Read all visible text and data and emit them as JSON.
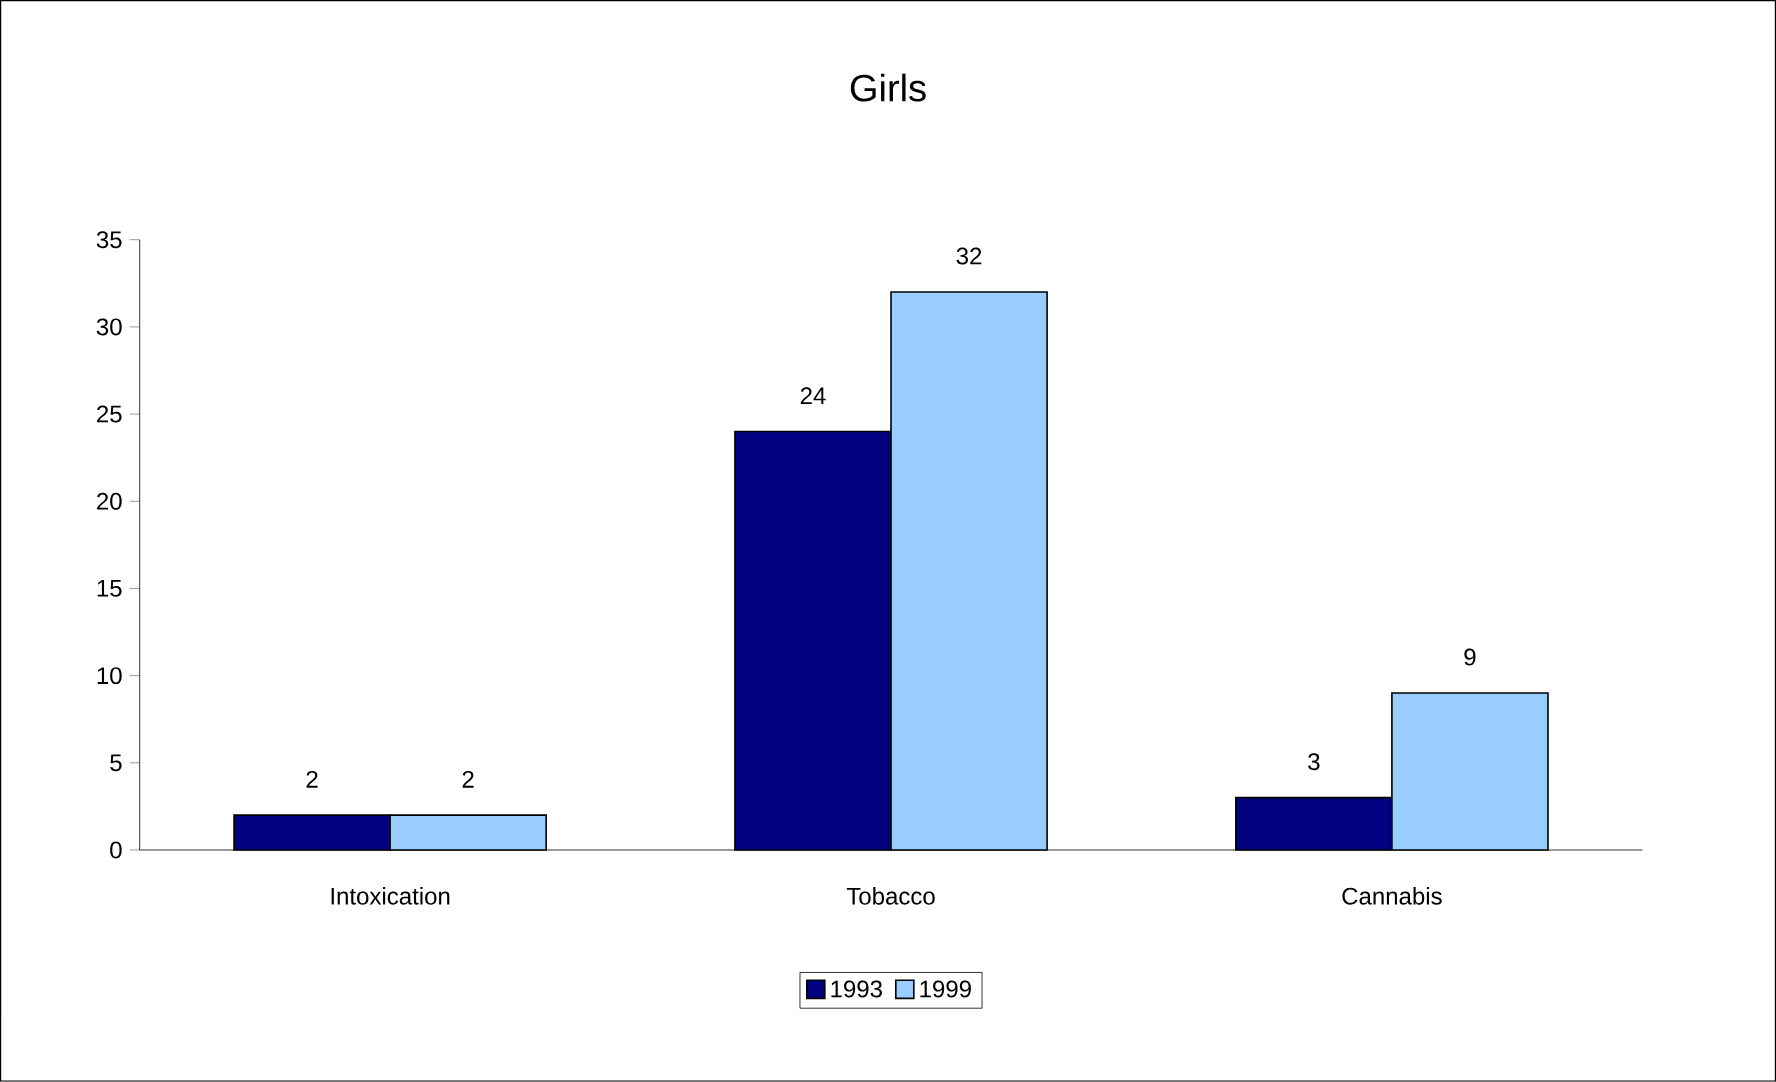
{
  "chart_data": {
    "type": "bar",
    "title": "Girls",
    "categories": [
      "Intoxication",
      "Tobacco",
      "Cannabis"
    ],
    "series": [
      {
        "name": "1993",
        "color": "#000080",
        "values": [
          2,
          24,
          3
        ]
      },
      {
        "name": "1999",
        "color": "#99ccff",
        "values": [
          2,
          32,
          9
        ]
      }
    ],
    "ylim": [
      0,
      35
    ],
    "yticks": [
      0,
      5,
      10,
      15,
      20,
      25,
      30,
      35
    ],
    "data_labels": true,
    "grid": false,
    "legend": "bottom"
  }
}
